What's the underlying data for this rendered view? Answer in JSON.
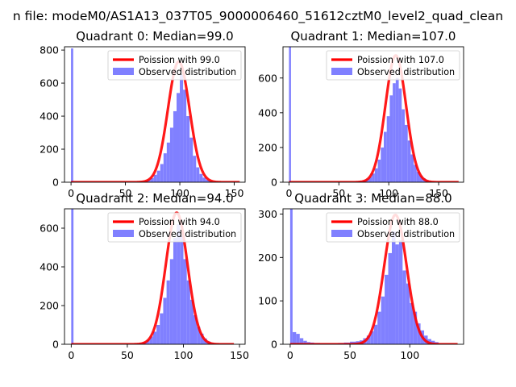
{
  "figure": {
    "suptitle": "n file: modeM0/AS1A13_037T05_9000006460_51612cztM0_level2_quad_clean"
  },
  "colors": {
    "hist": "#8080ff",
    "poisson": "#ff0000",
    "axis": "#000000"
  },
  "chart_data": [
    {
      "type": "bar+line",
      "title": "Quadrant 0: Median=99.0",
      "xlim": [
        -6,
        160
      ],
      "ylim": [
        0,
        820
      ],
      "xticks": [
        0,
        50,
        100,
        150
      ],
      "yticks": [
        0,
        200,
        400,
        600,
        800
      ],
      "legend_position": "upper-right",
      "series": [
        {
          "name": "Poission with 99.0",
          "kind": "line",
          "mean": 99.0,
          "peak": 730,
          "x_range": [
            0,
            155
          ]
        },
        {
          "name": "Observed distribution",
          "kind": "histogram",
          "bins": [
            [
              0,
              2,
              810
            ],
            [
              64,
              67,
              3
            ],
            [
              67,
              70,
              6
            ],
            [
              70,
              73,
              15
            ],
            [
              73,
              76,
              25
            ],
            [
              76,
              79,
              45
            ],
            [
              79,
              82,
              70
            ],
            [
              82,
              85,
              110
            ],
            [
              85,
              88,
              175
            ],
            [
              88,
              91,
              240
            ],
            [
              91,
              94,
              330
            ],
            [
              94,
              97,
              430
            ],
            [
              97,
              100,
              540
            ],
            [
              100,
              103,
              650
            ],
            [
              103,
              106,
              560
            ],
            [
              106,
              109,
              400
            ],
            [
              109,
              112,
              270
            ],
            [
              112,
              115,
              160
            ],
            [
              115,
              118,
              90
            ],
            [
              118,
              121,
              50
            ],
            [
              121,
              124,
              28
            ],
            [
              124,
              127,
              15
            ],
            [
              127,
              130,
              7
            ]
          ]
        }
      ]
    },
    {
      "type": "bar+line",
      "title": "Quadrant 1: Median=107.0",
      "xlim": [
        -6,
        175
      ],
      "ylim": [
        0,
        780
      ],
      "xticks": [
        0,
        50,
        100,
        150
      ],
      "yticks": [
        0,
        200,
        400,
        600
      ],
      "legend_position": "upper-right",
      "series": [
        {
          "name": "Poission with 107.0",
          "kind": "line",
          "mean": 107.0,
          "peak": 730,
          "x_range": [
            0,
            170
          ]
        },
        {
          "name": "Observed distribution",
          "kind": "histogram",
          "bins": [
            [
              0,
              2,
              780
            ],
            [
              68,
              71,
              4
            ],
            [
              71,
              74,
              6
            ],
            [
              74,
              77,
              10
            ],
            [
              77,
              80,
              18
            ],
            [
              80,
              83,
              30
            ],
            [
              83,
              86,
              50
            ],
            [
              86,
              89,
              80
            ],
            [
              89,
              92,
              130
            ],
            [
              92,
              95,
              200
            ],
            [
              95,
              98,
              290
            ],
            [
              98,
              101,
              380
            ],
            [
              101,
              104,
              500
            ],
            [
              104,
              107,
              570
            ],
            [
              107,
              110,
              600
            ],
            [
              110,
              113,
              540
            ],
            [
              113,
              116,
              420
            ],
            [
              116,
              119,
              330
            ],
            [
              119,
              122,
              240
            ],
            [
              122,
              125,
              160
            ],
            [
              125,
              128,
              100
            ],
            [
              128,
              131,
              60
            ],
            [
              131,
              134,
              38
            ],
            [
              134,
              137,
              22
            ],
            [
              137,
              140,
              12
            ],
            [
              140,
              143,
              6
            ]
          ]
        }
      ]
    },
    {
      "type": "bar+line",
      "title": "Quadrant 2: Median=94.0",
      "xlim": [
        -6,
        155
      ],
      "ylim": [
        0,
        700
      ],
      "xticks": [
        0,
        50,
        100,
        150
      ],
      "yticks": [
        0,
        200,
        400,
        600
      ],
      "legend_position": "upper-right",
      "series": [
        {
          "name": "Poission with 94.0",
          "kind": "line",
          "mean": 94.0,
          "peak": 680,
          "x_range": [
            0,
            145
          ]
        },
        {
          "name": "Observed distribution",
          "kind": "histogram",
          "bins": [
            [
              0,
              2,
              700
            ],
            [
              58,
              61,
              3
            ],
            [
              61,
              64,
              6
            ],
            [
              64,
              67,
              12
            ],
            [
              67,
              70,
              22
            ],
            [
              70,
              73,
              40
            ],
            [
              73,
              76,
              65
            ],
            [
              76,
              79,
              100
            ],
            [
              79,
              82,
              160
            ],
            [
              82,
              85,
              240
            ],
            [
              85,
              88,
              330
            ],
            [
              88,
              91,
              440
            ],
            [
              91,
              94,
              550
            ],
            [
              94,
              97,
              620
            ],
            [
              97,
              100,
              560
            ],
            [
              100,
              103,
              440
            ],
            [
              103,
              106,
              330
            ],
            [
              106,
              109,
              230
            ],
            [
              109,
              112,
              150
            ],
            [
              112,
              115,
              90
            ],
            [
              115,
              118,
              55
            ],
            [
              118,
              121,
              30
            ],
            [
              121,
              124,
              15
            ],
            [
              124,
              127,
              7
            ]
          ]
        }
      ]
    },
    {
      "type": "bar+line",
      "title": "Quadrant 3: Median=88.0",
      "xlim": [
        -6,
        145
      ],
      "ylim": [
        0,
        312
      ],
      "xticks": [
        0,
        50,
        100
      ],
      "yticks": [
        0,
        100,
        200,
        300
      ],
      "legend_position": "upper-right",
      "series": [
        {
          "name": "Poission with 88.0",
          "kind": "line",
          "mean": 88.0,
          "peak": 298,
          "x_range": [
            0,
            140
          ]
        },
        {
          "name": "Observed distribution",
          "kind": "histogram",
          "bins": [
            [
              0,
              2,
              312
            ],
            [
              2,
              5,
              28
            ],
            [
              5,
              8,
              24
            ],
            [
              8,
              11,
              14
            ],
            [
              11,
              14,
              8
            ],
            [
              14,
              17,
              5
            ],
            [
              17,
              20,
              4
            ],
            [
              20,
              25,
              3
            ],
            [
              25,
              30,
              2
            ],
            [
              30,
              35,
              2
            ],
            [
              35,
              40,
              2
            ],
            [
              40,
              45,
              3
            ],
            [
              45,
              50,
              4
            ],
            [
              50,
              55,
              6
            ],
            [
              55,
              58,
              7
            ],
            [
              58,
              61,
              9
            ],
            [
              61,
              64,
              14
            ],
            [
              64,
              67,
              20
            ],
            [
              67,
              70,
              30
            ],
            [
              70,
              73,
              45
            ],
            [
              73,
              76,
              75
            ],
            [
              76,
              79,
              110
            ],
            [
              79,
              82,
              160
            ],
            [
              82,
              85,
              210
            ],
            [
              85,
              88,
              260
            ],
            [
              88,
              91,
              230
            ],
            [
              91,
              94,
              240
            ],
            [
              94,
              97,
              170
            ],
            [
              97,
              100,
              140
            ],
            [
              100,
              103,
              95
            ],
            [
              103,
              106,
              75
            ],
            [
              106,
              109,
              48
            ],
            [
              109,
              112,
              32
            ],
            [
              112,
              115,
              20
            ],
            [
              115,
              118,
              12
            ],
            [
              118,
              121,
              8
            ],
            [
              121,
              124,
              5
            ]
          ]
        }
      ]
    }
  ]
}
